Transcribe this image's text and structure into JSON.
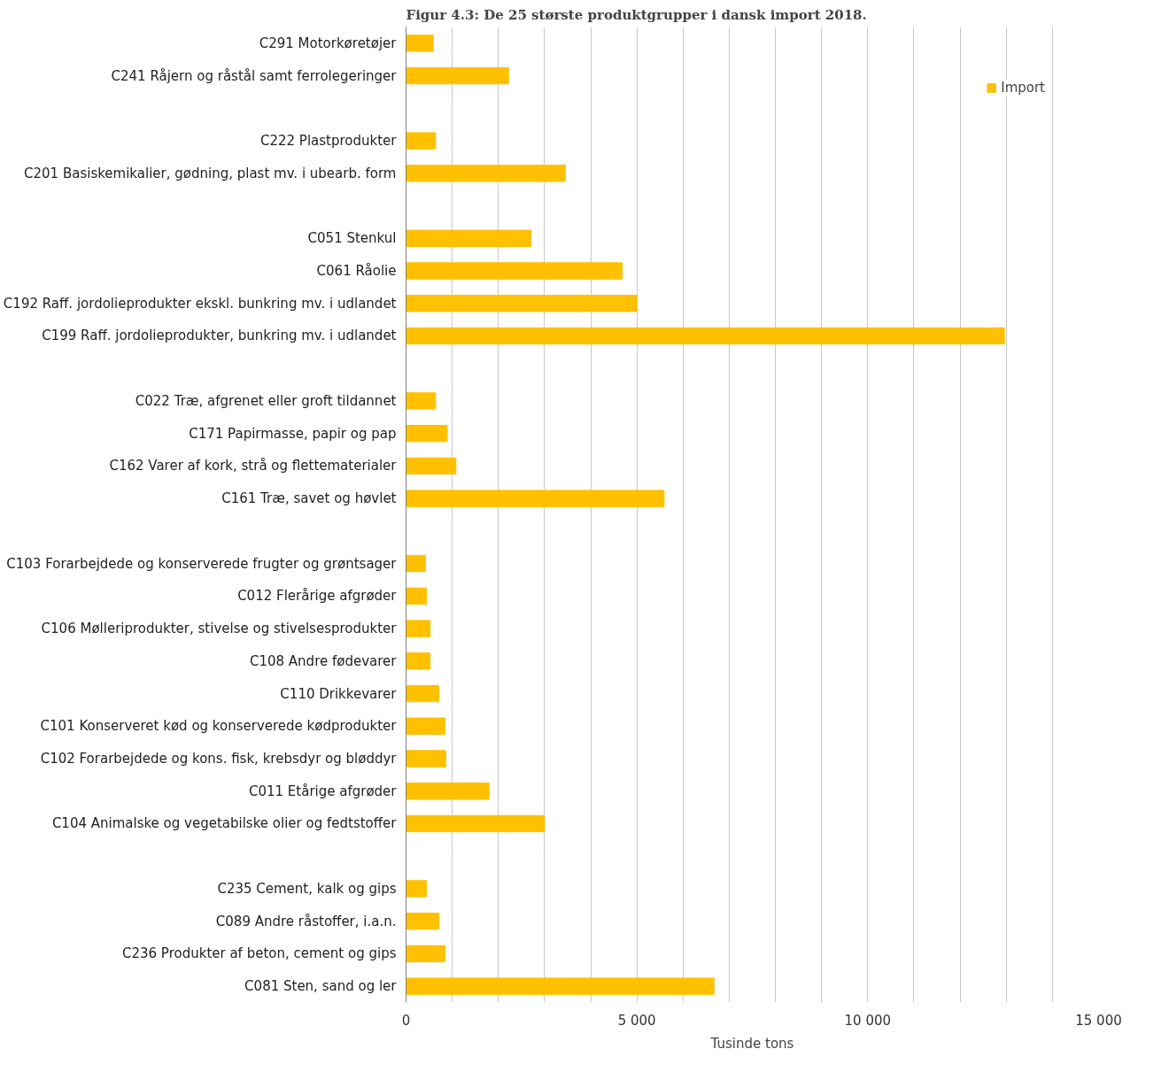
{
  "chart_data": {
    "type": "bar",
    "orientation": "horizontal",
    "title": "Figur 4.3: De 25 største produktgrupper i dansk import 2018.",
    "xlabel": "Tusinde tons",
    "categories": [
      "C291 Motorkøretøjer",
      "C241 Råjern og råstål samt ferrolegeringer",
      null,
      "C222 Plastprodukter",
      "C201 Basiskemikalier, gødning, plast mv. i ubearb. form",
      null,
      "C051 Stenkul",
      "C061 Råolie",
      "C192 Raff. jordolieprodukter ekskl. bunkring mv. i udlandet",
      "C199 Raff. jordolieprodukter, bunkring mv. i udlandet",
      null,
      "C022 Træ, afgrenet eller groft tildannet",
      "C171 Papirmasse, papir og pap",
      "C162 Varer af kork, strå og flettematerialer",
      "C161 Træ, savet og høvlet",
      null,
      "C103 Forarbejdede og konserverede frugter og grøntsager",
      "C012 Flerårige afgrøder",
      "C106 Mølleriprodukter, stivelse og stivelsesprodukter",
      "C108 Andre fødevarer",
      "C110 Drikkevarer",
      "C101 Konserveret kød og konserverede kødprodukter",
      "C102 Forarbejdede og kons. fisk, krebsdyr og bløddyr",
      "C011 Etårige afgrøder",
      "C104 Animalske og vegetabilske olier og fedtstoffer",
      null,
      "C235 Cement, kalk og gips",
      "C089 Andre råstoffer, i.a.n.",
      "C236 Produkter af beton, cement og gips",
      "C081 Sten, sand og ler"
    ],
    "series": [
      {
        "name": "Import",
        "color": "#ffc000",
        "values": [
          590,
          2220,
          null,
          640,
          3450,
          null,
          2710,
          4680,
          5000,
          12960,
          null,
          640,
          890,
          1080,
          5590,
          null,
          420,
          440,
          520,
          520,
          710,
          840,
          860,
          1800,
          3000,
          null,
          440,
          710,
          840,
          6670
        ]
      }
    ],
    "xlim": [
      0,
      15000
    ],
    "xticks": [
      {
        "value": 0,
        "label": "0"
      },
      {
        "value": 1000,
        "label": null
      },
      {
        "value": 2000,
        "label": null
      },
      {
        "value": 3000,
        "label": null
      },
      {
        "value": 4000,
        "label": null
      },
      {
        "value": 5000,
        "label": "5 000"
      },
      {
        "value": 6000,
        "label": null
      },
      {
        "value": 7000,
        "label": null
      },
      {
        "value": 8000,
        "label": null
      },
      {
        "value": 9000,
        "label": null
      },
      {
        "value": 10000,
        "label": "10 000"
      },
      {
        "value": 11000,
        "label": null
      },
      {
        "value": 12000,
        "label": null
      },
      {
        "value": 13000,
        "label": null
      },
      {
        "value": 14000,
        "label": null
      },
      {
        "value": 15000,
        "label": "15 000"
      }
    ],
    "grid": "x",
    "legend": "top right"
  }
}
